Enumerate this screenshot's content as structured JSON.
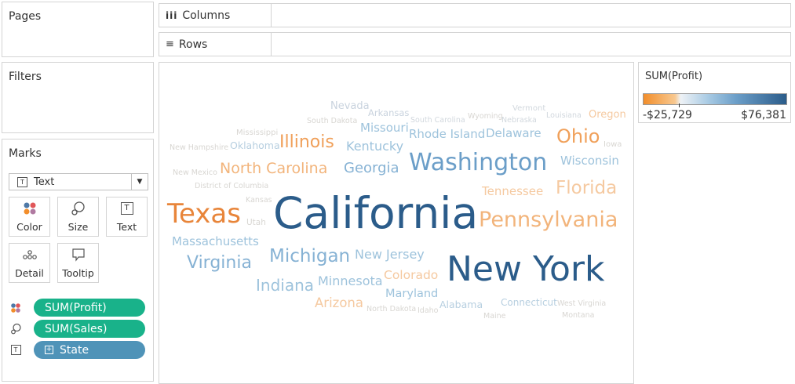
{
  "shelves": {
    "pages": "Pages",
    "columns": "Columns",
    "rows": "Rows",
    "filters": "Filters"
  },
  "marks": {
    "title": "Marks",
    "type": "Text",
    "buttons": {
      "color": "Color",
      "size": "Size",
      "text": "Text",
      "detail": "Detail",
      "tooltip": "Tooltip"
    },
    "pills": [
      {
        "icon": "color-icon",
        "label": "SUM(Profit)",
        "color": "#19b28a"
      },
      {
        "icon": "size-icon",
        "label": "SUM(Sales)",
        "color": "#19b28a"
      },
      {
        "icon": "text-icon",
        "label": "State",
        "color": "#4f93b8"
      }
    ]
  },
  "legend": {
    "title": "SUM(Profit)",
    "min": "-$25,729",
    "max": "$76,381",
    "colors": {
      "negative": "#f28e2b",
      "zero": "#eef2f6",
      "positive": "#2b5c8a"
    }
  },
  "words": [
    "Nevada",
    "Arkansas",
    "Vermont",
    "South Dakota",
    "South Carolina",
    "Wyoming",
    "Nebraska",
    "Louisiana",
    "Oregon",
    "Mississippi",
    "Missouri",
    "Rhode Island",
    "Delaware",
    "Ohio",
    "Iowa",
    "New Hampshire",
    "Oklahoma",
    "Illinois",
    "Kentucky",
    "Washington",
    "Wisconsin",
    "North Carolina",
    "Georgia",
    "New Mexico",
    "District of Columbia",
    "Tennessee",
    "Florida",
    "Kansas",
    "Texas",
    "California",
    "Pennsylvania",
    "Utah",
    "Massachusetts",
    "Michigan",
    "New Jersey",
    "Virginia",
    "New York",
    "Indiana",
    "Minnesota",
    "Colorado",
    "Maryland",
    "Arizona",
    "North Dakota",
    "Idaho",
    "Alabama",
    "Connecticut",
    "West Virginia",
    "Maine",
    "Montana"
  ]
}
